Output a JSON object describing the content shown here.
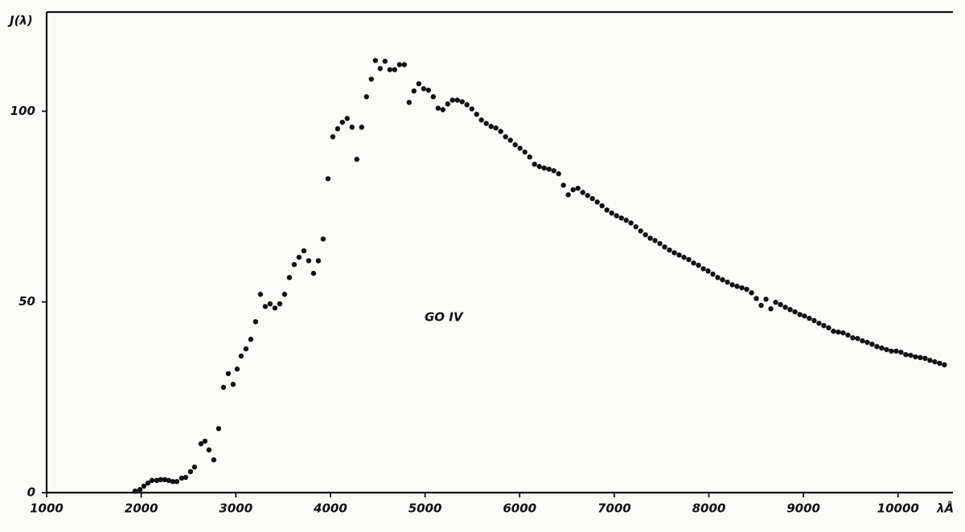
{
  "chart_data": {
    "type": "scatter",
    "y_label": "J(λ)",
    "x_label": "λÅ",
    "annotation": "GO IV",
    "color": "#111111",
    "xlim": [
      1000,
      10580
    ],
    "ylim": [
      0,
      126
    ],
    "xticks": [
      1000,
      2000,
      3000,
      4000,
      5000,
      6000,
      7000,
      8000,
      9000,
      10000
    ],
    "yticks": [
      0,
      50,
      100
    ],
    "x": [
      1935,
      1986,
      2028,
      2071,
      2113,
      2164,
      2206,
      2249,
      2291,
      2334,
      2376,
      2427,
      2470,
      2521,
      2563,
      2631,
      2674,
      2716,
      2767,
      2818,
      2869,
      2920,
      2971,
      3014,
      3056,
      3107,
      3158,
      3209,
      3260,
      3311,
      3362,
      3413,
      3464,
      3515,
      3566,
      3617,
      3668,
      3719,
      3770,
      3821,
      3872,
      3923,
      3974,
      4025,
      4076,
      4126,
      4177,
      4228,
      4279,
      4330,
      4381,
      4432,
      4475,
      4526,
      4577,
      4628,
      4679,
      4730,
      4781,
      4832,
      4883,
      4934,
      4985,
      5036,
      5087,
      5138,
      5189,
      5240,
      5290,
      5341,
      5392,
      5443,
      5494,
      5545,
      5596,
      5647,
      5698,
      5749,
      5800,
      5851,
      5902,
      5953,
      6004,
      6055,
      6106,
      6157,
      6208,
      6259,
      6310,
      6361,
      6412,
      6463,
      6514,
      6565,
      6616,
      6667,
      6718,
      6769,
      6820,
      6871,
      6922,
      6973,
      7024,
      7075,
      7126,
      7177,
      7228,
      7279,
      7330,
      7380,
      7431,
      7482,
      7533,
      7584,
      7635,
      7686,
      7737,
      7788,
      7839,
      7890,
      7941,
      7992,
      8043,
      8094,
      8145,
      8196,
      8247,
      8298,
      8349,
      8400,
      8451,
      8502,
      8553,
      8604,
      8655,
      8706,
      8757,
      8808,
      8859,
      8910,
      8961,
      9011,
      9062,
      9113,
      9164,
      9215,
      9266,
      9317,
      9368,
      9419,
      9470,
      9521,
      9572,
      9623,
      9674,
      9725,
      9776,
      9827,
      9878,
      9929,
      9980,
      10031,
      10082,
      10133,
      10184,
      10235,
      10286,
      10337,
      10388,
      10439,
      10490
    ],
    "values": [
      0.4,
      0.8,
      1.7,
      2.5,
      3.2,
      3.2,
      3.4,
      3.4,
      3.2,
      2.9,
      2.9,
      3.8,
      4.0,
      5.5,
      6.7,
      12.8,
      13.5,
      11.2,
      8.6,
      16.8,
      27.6,
      31.2,
      28.4,
      32.4,
      35.8,
      37.7,
      40.2,
      44.8,
      52.0,
      48.8,
      49.5,
      48.4,
      49.5,
      52.0,
      56.4,
      59.8,
      61.7,
      63.4,
      60.8,
      57.5,
      60.8,
      66.5,
      82.3,
      93.3,
      95.4,
      97.1,
      98.1,
      95.8,
      87.4,
      95.8,
      103.8,
      108.4,
      113.3,
      111.2,
      113.1,
      110.9,
      110.9,
      112.2,
      112.2,
      102.3,
      105.3,
      107.2,
      105.9,
      105.5,
      103.8,
      100.8,
      100.4,
      101.9,
      102.9,
      102.9,
      102.5,
      101.7,
      100.6,
      99.2,
      97.7,
      96.8,
      96.0,
      95.6,
      94.7,
      93.3,
      92.4,
      91.2,
      90.3,
      89.3,
      88.0,
      86.1,
      85.5,
      85.1,
      84.8,
      84.4,
      83.6,
      80.6,
      78.1,
      79.4,
      79.8,
      78.7,
      77.9,
      77.1,
      76.2,
      75.2,
      74.1,
      73.3,
      72.6,
      72.0,
      71.4,
      70.7,
      69.7,
      68.6,
      67.6,
      66.7,
      66.1,
      65.3,
      64.4,
      63.6,
      62.9,
      62.3,
      61.7,
      61.1,
      60.2,
      59.6,
      58.7,
      58.1,
      57.3,
      56.4,
      55.8,
      55.2,
      54.5,
      54.1,
      53.7,
      53.3,
      52.4,
      50.9,
      49.1,
      50.7,
      48.2,
      49.9,
      49.3,
      48.6,
      48.0,
      47.4,
      46.7,
      46.3,
      45.7,
      45.1,
      44.4,
      43.8,
      43.2,
      42.3,
      42.1,
      41.9,
      41.3,
      40.6,
      40.4,
      39.8,
      39.4,
      38.9,
      38.3,
      37.9,
      37.5,
      37.1,
      37.1,
      36.8,
      36.2,
      36.0,
      35.6,
      35.4,
      35.2,
      34.7,
      34.3,
      33.9,
      33.5
    ]
  }
}
